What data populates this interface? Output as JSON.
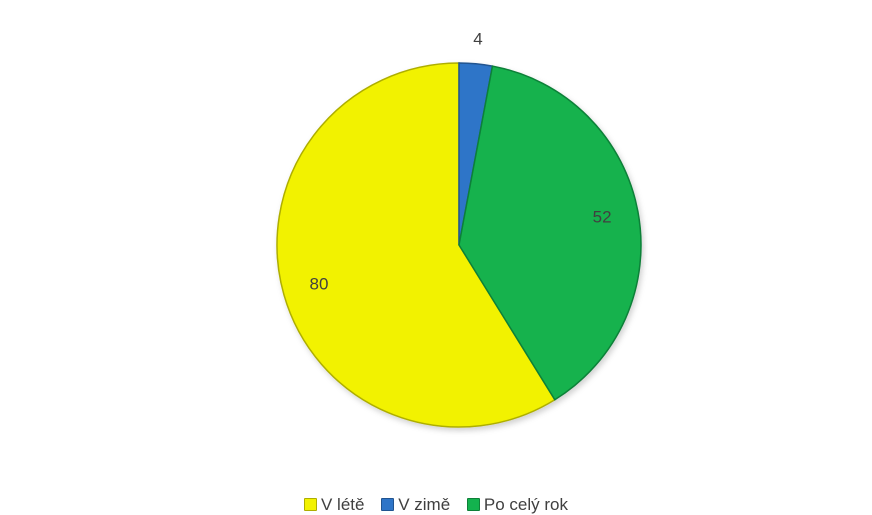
{
  "chart_data": {
    "type": "pie",
    "categories": [
      "V létě",
      "V zimě",
      "Po celý rok"
    ],
    "values": [
      80,
      4,
      52
    ],
    "colors": [
      "#F2F200",
      "#2E75C8",
      "#13B24E"
    ],
    "data_labels": [
      "80",
      "4",
      "52"
    ],
    "legend_placement": "bottom",
    "title": ""
  }
}
